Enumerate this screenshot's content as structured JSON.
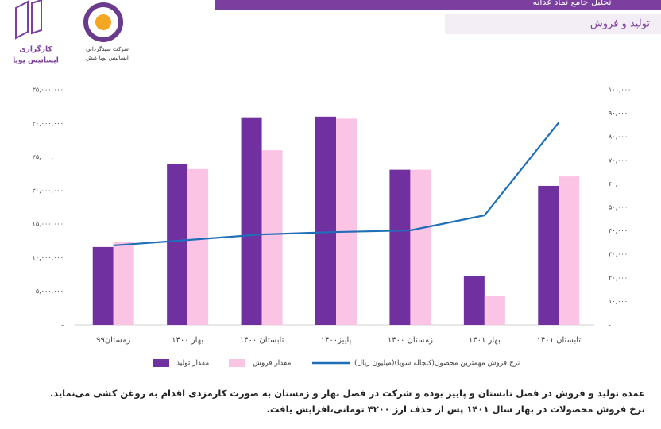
{
  "header": {
    "title": "تحلیل جامع نماد غدانه",
    "subtitle": "تولید و فروش"
  },
  "logos": {
    "broker": [
      "کارگزاری",
      "ایساتیس پویا"
    ],
    "fund": [
      "شرکت سبدگردانی",
      "ایساتیس پویا کیش"
    ]
  },
  "description": [
    "عمده تولید و فروش در فصل تابستان و پاییز بوده و شرکت در فصل بهار و زمستان به صورت کارمزدی اقدام به روغن کشی می‌نماید.",
    "نرخ فروش محصولات در بهار سال ۱۴۰۱ پس از حذف ارز ۴۲۰۰ تومانی،افزایش یافت."
  ],
  "chart_data": {
    "type": "bar",
    "categories": [
      "زمستان۹۹",
      "بهار ۱۴۰۰",
      "تابستان ۱۴۰۰",
      "پاییز۱۴۰۰",
      "زمستان ۱۴۰۰",
      "بهار ۱۴۰۱",
      "تابستان ۱۴۰۱"
    ],
    "series": [
      {
        "name": "مقدار تولید",
        "type": "bar",
        "color": "#7030a0",
        "values": [
          11600000,
          24000000,
          30900000,
          31000000,
          23100000,
          7300000,
          20700000
        ]
      },
      {
        "name": "مقدار فروش",
        "type": "bar",
        "color": "#fbc4e4",
        "values": [
          12400000,
          23200000,
          26000000,
          30700000,
          23100000,
          4300000,
          22100000
        ]
      },
      {
        "name": "نرخ فروش مهمترین محصول(کنجاله سویا)(میلیون ریال)",
        "type": "line",
        "axis": "y2",
        "color": "#1f6fb8",
        "values": [
          33800,
          36100,
          38500,
          39500,
          40200,
          46600,
          86100
        ]
      }
    ],
    "ylim": [
      0,
      35000000
    ],
    "yticks": [
      {
        "value": 0,
        "label": "-"
      },
      {
        "value": 5000000,
        "label": "۵,۰۰۰,۰۰۰"
      },
      {
        "value": 10000000,
        "label": "۱۰,۰۰۰,۰۰۰"
      },
      {
        "value": 15000000,
        "label": "۱۵,۰۰۰,۰۰۰"
      },
      {
        "value": 20000000,
        "label": "۲۰,۰۰۰,۰۰۰"
      },
      {
        "value": 25000000,
        "label": "۲۵,۰۰۰,۰۰۰"
      },
      {
        "value": 30000000,
        "label": "۳۰,۰۰۰,۰۰۰"
      },
      {
        "value": 35000000,
        "label": "۳۵,۰۰۰,۰۰۰"
      }
    ],
    "y2lim": [
      0,
      100000
    ],
    "y2ticks": [
      {
        "value": 0,
        "label": "-"
      },
      {
        "value": 10000,
        "label": "۱۰,۰۰۰"
      },
      {
        "value": 20000,
        "label": "۲۰,۰۰۰"
      },
      {
        "value": 30000,
        "label": "۳۰,۰۰۰"
      },
      {
        "value": 40000,
        "label": "۴۰,۰۰۰"
      },
      {
        "value": 50000,
        "label": "۵۰,۰۰۰"
      },
      {
        "value": 60000,
        "label": "۶۰,۰۰۰"
      },
      {
        "value": 70000,
        "label": "۷۰,۰۰۰"
      },
      {
        "value": 80000,
        "label": "۸۰,۰۰۰"
      },
      {
        "value": 90000,
        "label": "۹۰,۰۰۰"
      },
      {
        "value": 100000,
        "label": "۱۰۰,۰۰۰"
      }
    ],
    "legend": "bottom"
  }
}
